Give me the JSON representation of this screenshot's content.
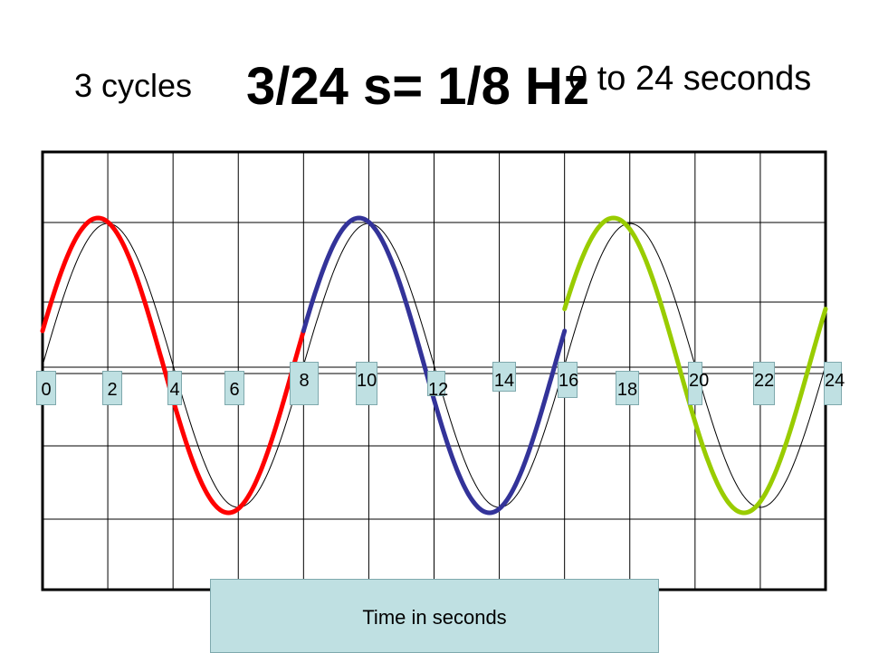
{
  "header": {
    "cycles_label": "3 cycles",
    "formula": "3/24 s= 1/8 Hz",
    "range_label": "0 to 24 seconds"
  },
  "axis": {
    "xlabel": "Time  in seconds",
    "ticks": [
      "0",
      "2",
      "4",
      "6",
      "8",
      "10",
      "12",
      "14",
      "16",
      "18",
      "20",
      "22",
      "24"
    ]
  },
  "colors": {
    "cycle1": "#ff0000",
    "cycle2": "#333399",
    "cycle3": "#99cc00",
    "reference": "#000000",
    "tick_box": "#bfe0e2"
  },
  "chart_data": {
    "type": "line",
    "xlim": [
      0,
      24
    ],
    "grid": true,
    "period_seconds": 8,
    "series": [
      {
        "x_start": 0,
        "x_end": 8,
        "color": "#ff0000"
      },
      {
        "x_start": 8,
        "x_end": 16,
        "color": "#333399"
      },
      {
        "x_start": 16,
        "x_end": 24,
        "color": "#99cc00"
      }
    ]
  }
}
